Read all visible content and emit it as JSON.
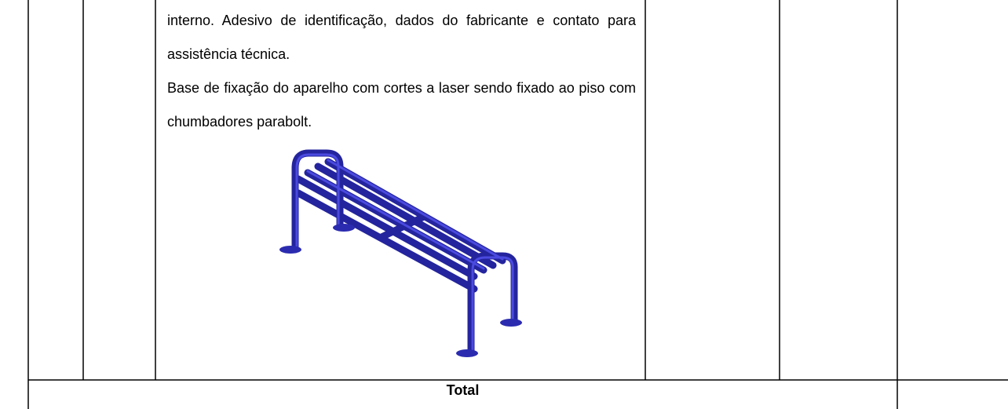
{
  "description": {
    "paragraphs": [
      "interno. Adesivo de identificação, dados do fabricante e contato para assistência técnica.",
      "Base de fixação do aparelho com cortes a laser sendo fixado ao piso com chumbadores parabolt."
    ]
  },
  "total_row": {
    "label": "Total"
  }
}
